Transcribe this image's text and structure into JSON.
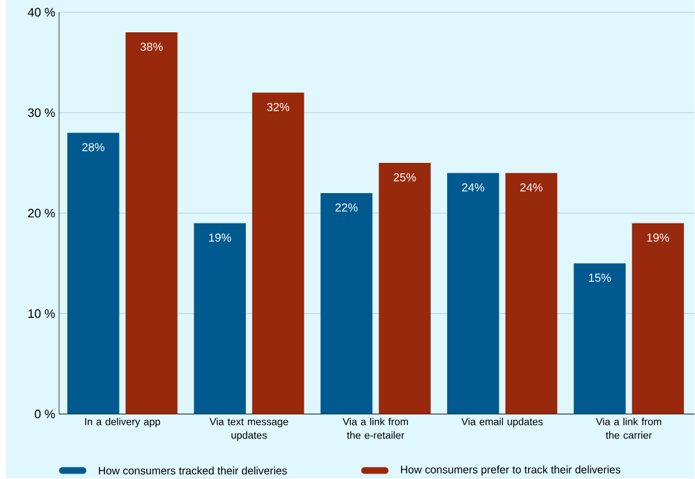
{
  "chart_data": {
    "type": "bar",
    "categories": [
      "In a delivery app",
      "Via text message updates",
      "Via a link from the e-retailer",
      "Via email updates",
      "Via a link from the carrier"
    ],
    "series": [
      {
        "name": "How consumers tracked their deliveries",
        "color": "#005a8f",
        "values": [
          28,
          19,
          22,
          24,
          15
        ],
        "value_labels": [
          "28%",
          "19%",
          "22%",
          "24%",
          "15%"
        ]
      },
      {
        "name": "How consumers prefer to track their deliveries",
        "color": "#98290c",
        "values": [
          38,
          32,
          25,
          24,
          19
        ],
        "value_labels": [
          "38%",
          "32%",
          "25%",
          "24%",
          "19%"
        ]
      }
    ],
    "ylim": [
      0,
      40
    ],
    "yticks": [
      {
        "value": 0,
        "label": "0 %"
      },
      {
        "value": 10,
        "label": "10 %"
      },
      {
        "value": 20,
        "label": "20 %"
      },
      {
        "value": 30,
        "label": "30 %"
      },
      {
        "value": 40,
        "label": "40 %"
      }
    ],
    "grid": "y",
    "legend": "bottom"
  }
}
